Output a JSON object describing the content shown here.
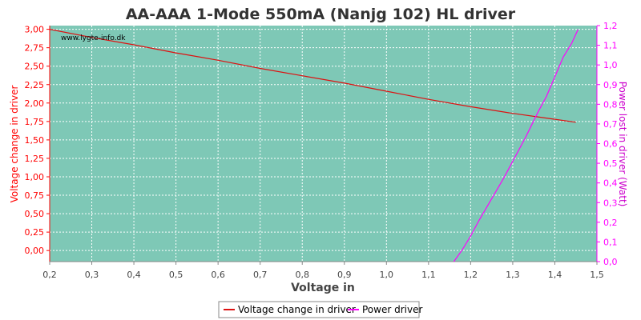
{
  "chart_data": {
    "type": "line",
    "title": "AA-AAA 1-Mode 550mA (Nanjg 102) HL driver",
    "watermark": "www.lygte-info.dk",
    "xlabel": "Voltage in",
    "ylabel_left": "Voltage change in driver",
    "ylabel_right": "Power lost in driver (Watt)",
    "xlim": [
      0.2,
      1.5
    ],
    "ylim_left": [
      -0.15,
      3.05
    ],
    "ylim_right": [
      0.0,
      1.2
    ],
    "x_ticks": [
      "0,2",
      "0,3",
      "0,4",
      "0,5",
      "0,6",
      "0,7",
      "0,8",
      "0,9",
      "1,0",
      "1,1",
      "1,2",
      "1,3",
      "1,4",
      "1,5"
    ],
    "y_left_ticks": [
      "0,00",
      "0,25",
      "0,50",
      "0,75",
      "1,00",
      "1,25",
      "1,50",
      "1,75",
      "2,00",
      "2,25",
      "2,50",
      "2,75",
      "3,00"
    ],
    "y_right_ticks": [
      "0,0",
      "0,1",
      "0,2",
      "0,3",
      "0,4",
      "0,5",
      "0,6",
      "0,7",
      "0,8",
      "0,9",
      "1,0",
      "1,1",
      "1,2"
    ],
    "grid": true,
    "legend_position": "bottom-center",
    "colors": {
      "plot_bg": "#7ec8b6",
      "grid": "#ffffff",
      "left_axis": "#ff0000",
      "right_axis": "#ff00ff",
      "series_voltage": "#dd1111",
      "series_power": "#ff00ff"
    },
    "series": [
      {
        "name": "Voltage change in driver",
        "axis": "left",
        "x": [
          0.2,
          0.3,
          0.4,
          0.5,
          0.6,
          0.7,
          0.8,
          0.9,
          1.0,
          1.1,
          1.2,
          1.3,
          1.4,
          1.45
        ],
        "y": [
          3.0,
          2.89,
          2.79,
          2.68,
          2.58,
          2.47,
          2.37,
          2.27,
          2.16,
          2.05,
          1.95,
          1.86,
          1.78,
          1.74
        ]
      },
      {
        "name": "Power driver",
        "axis": "right",
        "x": [
          1.16,
          1.18,
          1.2,
          1.22,
          1.25,
          1.28,
          1.3,
          1.33,
          1.36,
          1.38,
          1.4,
          1.42,
          1.44,
          1.455
        ],
        "y": [
          0.0,
          0.06,
          0.13,
          0.21,
          0.32,
          0.43,
          0.51,
          0.63,
          0.76,
          0.84,
          0.94,
          1.04,
          1.11,
          1.18
        ]
      }
    ]
  }
}
